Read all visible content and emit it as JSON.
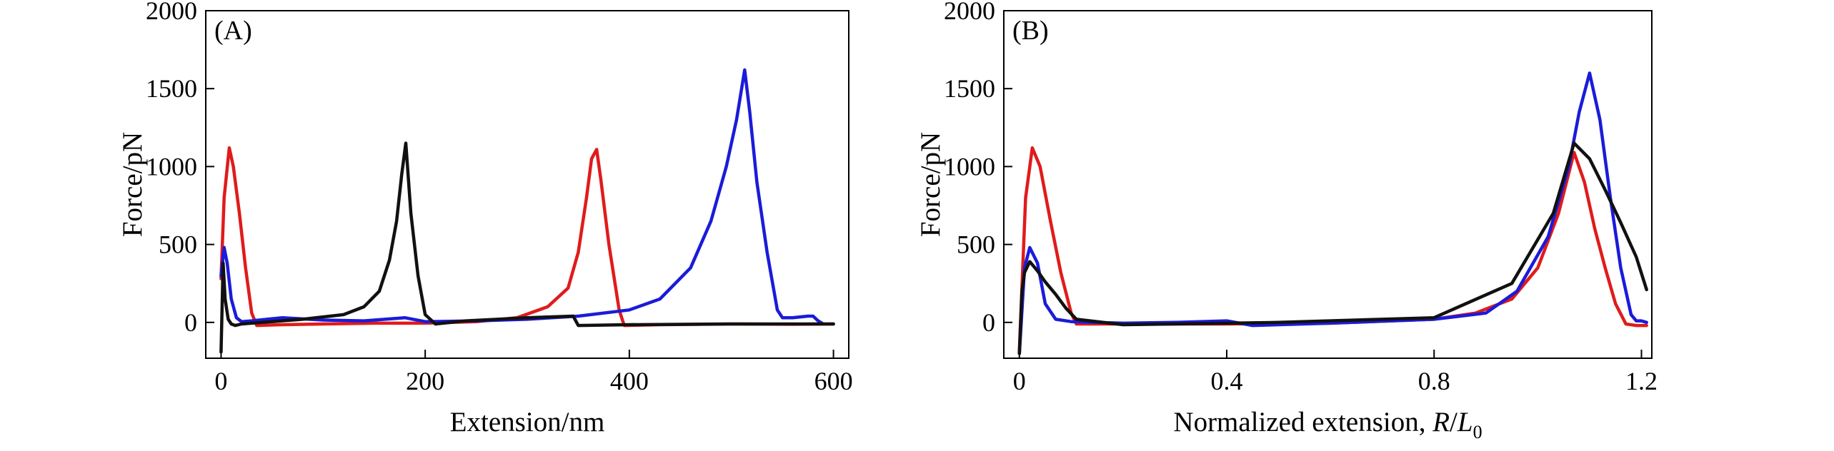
{
  "chart_data": [
    {
      "type": "line",
      "panel_label": "(A)",
      "xlabel": "Extension/nm",
      "ylabel": "Force/pN",
      "xlim": [
        -15,
        615
      ],
      "ylim": [
        -230,
        2000
      ],
      "xticks": [
        0,
        200,
        400,
        600
      ],
      "yticks": [
        0,
        500,
        1000,
        1500,
        2000
      ],
      "grid": false,
      "legend": "none",
      "series": [
        {
          "color": "#e01b1b",
          "x": [
            0,
            3,
            8,
            12,
            18,
            24,
            30,
            35,
            60,
            100,
            150,
            200,
            250,
            290,
            320,
            340,
            350,
            358,
            363,
            368,
            372,
            380,
            390,
            395,
            430,
            500,
            560,
            600
          ],
          "y": [
            280,
            800,
            1120,
            1000,
            700,
            350,
            60,
            -20,
            -15,
            -10,
            -5,
            -5,
            5,
            30,
            100,
            220,
            450,
            800,
            1050,
            1110,
            920,
            500,
            80,
            -20,
            -15,
            -10,
            -12,
            -10
          ]
        },
        {
          "color": "#1b1bd9",
          "x": [
            0,
            3,
            6,
            10,
            15,
            20,
            30,
            60,
            100,
            140,
            180,
            200,
            250,
            300,
            350,
            400,
            430,
            460,
            480,
            495,
            505,
            513,
            518,
            525,
            535,
            545,
            550,
            560,
            575,
            580,
            585,
            590
          ],
          "y": [
            300,
            480,
            380,
            150,
            30,
            5,
            10,
            30,
            15,
            10,
            30,
            5,
            10,
            20,
            40,
            80,
            150,
            350,
            650,
            1000,
            1300,
            1620,
            1350,
            900,
            450,
            80,
            30,
            30,
            40,
            40,
            10,
            -10
          ]
        },
        {
          "color": "#111111",
          "x": [
            0,
            2,
            4,
            7,
            10,
            14,
            20,
            40,
            80,
            120,
            140,
            155,
            165,
            172,
            177,
            181,
            186,
            193,
            200,
            210,
            240,
            300,
            345,
            350,
            400,
            500,
            600
          ],
          "y": [
            -190,
            380,
            150,
            20,
            -10,
            -20,
            -10,
            0,
            20,
            50,
            100,
            200,
            400,
            650,
            950,
            1150,
            700,
            300,
            50,
            -10,
            10,
            30,
            40,
            -20,
            -15,
            -10,
            -10
          ]
        }
      ]
    },
    {
      "type": "line",
      "panel_label": "(B)",
      "xlabel_main": "Normalized extension, ",
      "xlabel_R": "R",
      "xlabel_slash": "/",
      "xlabel_L": "L",
      "xlabel_sub": "0",
      "ylabel": "Force/pN",
      "xlim": [
        -0.03,
        1.22
      ],
      "ylim": [
        -230,
        2000
      ],
      "xticks": [
        0,
        0.4,
        0.8,
        1.2
      ],
      "xticklabels": [
        "0",
        "0.4",
        "0.8",
        "1.2"
      ],
      "yticks": [
        0,
        500,
        1000,
        1500,
        2000
      ],
      "grid": false,
      "legend": "none",
      "series": [
        {
          "color": "#e01b1b",
          "x": [
            0,
            0.012,
            0.025,
            0.04,
            0.06,
            0.08,
            0.1,
            0.11,
            0.2,
            0.4,
            0.6,
            0.8,
            0.88,
            0.95,
            1.0,
            1.04,
            1.07,
            1.09,
            1.11,
            1.13,
            1.15,
            1.17,
            1.19,
            1.21
          ],
          "y": [
            -180,
            800,
            1120,
            1000,
            650,
            320,
            60,
            -10,
            -10,
            -10,
            -5,
            20,
            60,
            150,
            350,
            700,
            1090,
            900,
            600,
            350,
            120,
            -10,
            -20,
            -20
          ]
        },
        {
          "color": "#1b1bd9",
          "x": [
            0,
            0.01,
            0.02,
            0.035,
            0.05,
            0.07,
            0.1,
            0.2,
            0.3,
            0.4,
            0.45,
            0.6,
            0.8,
            0.9,
            0.96,
            1.02,
            1.06,
            1.08,
            1.1,
            1.12,
            1.14,
            1.16,
            1.18,
            1.19,
            1.2,
            1.21
          ],
          "y": [
            -200,
            350,
            480,
            380,
            120,
            20,
            5,
            -5,
            0,
            10,
            -20,
            -5,
            20,
            60,
            200,
            550,
            1000,
            1350,
            1600,
            1300,
            800,
            350,
            50,
            10,
            10,
            0
          ]
        },
        {
          "color": "#111111",
          "x": [
            0,
            0.005,
            0.01,
            0.02,
            0.035,
            0.05,
            0.07,
            0.09,
            0.11,
            0.2,
            0.5,
            0.8,
            0.95,
            1.03,
            1.07,
            1.1,
            1.13,
            1.16,
            1.19,
            1.21
          ],
          "y": [
            -200,
            200,
            320,
            390,
            330,
            260,
            180,
            90,
            20,
            -15,
            0,
            30,
            250,
            700,
            1150,
            1050,
            850,
            640,
            420,
            210
          ]
        }
      ]
    }
  ]
}
